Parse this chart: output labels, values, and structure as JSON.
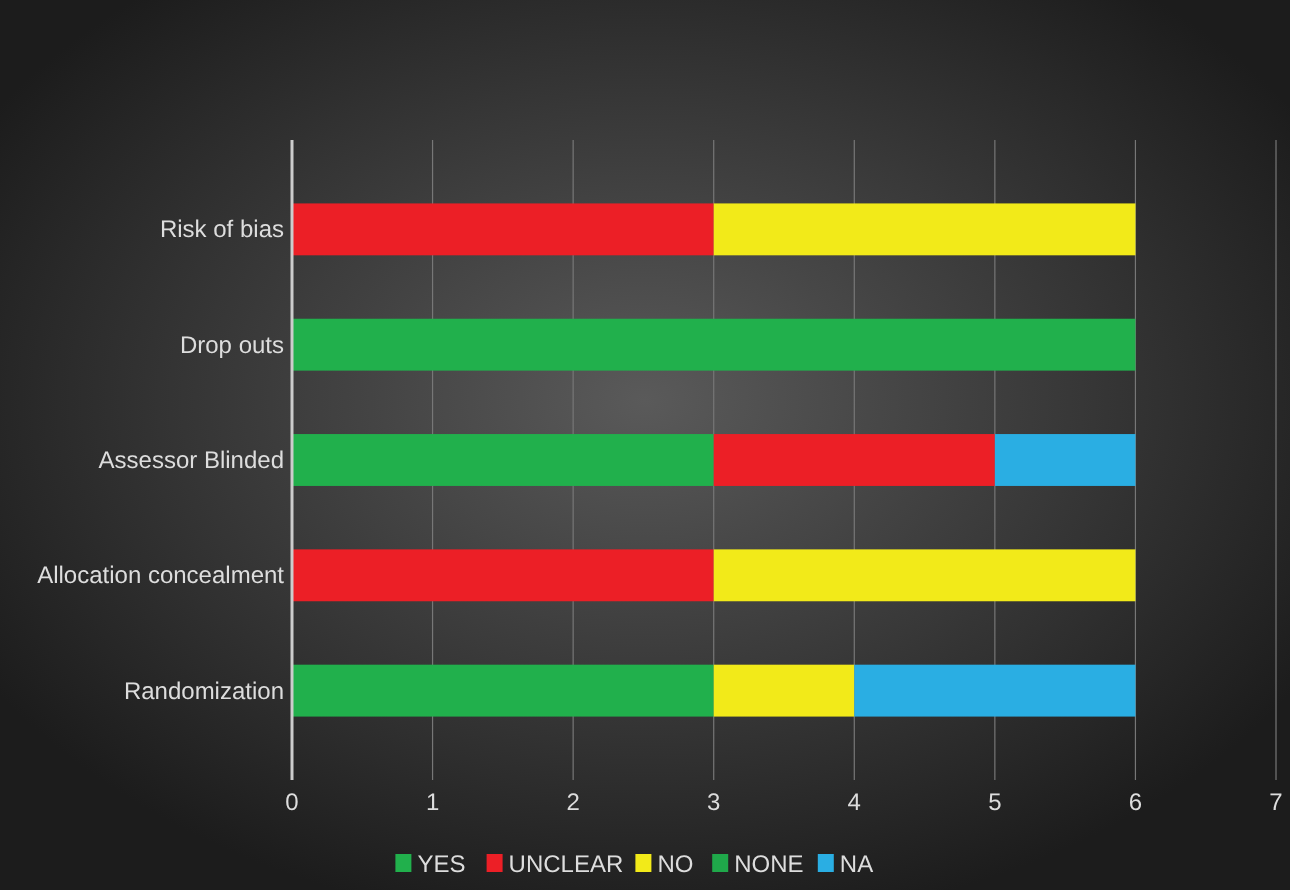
{
  "chart_data": {
    "type": "bar",
    "orientation": "horizontal",
    "stacked": true,
    "categories": [
      "Risk of bias",
      "Drop outs",
      "Assessor Blinded",
      "Allocation concealment",
      "Randomization"
    ],
    "series": [
      {
        "name": "YES",
        "color": "#21b04c",
        "values": [
          0,
          6,
          3,
          0,
          3
        ]
      },
      {
        "name": "UNCLEAR",
        "color": "#ec1f26",
        "values": [
          3,
          0,
          2,
          3,
          0
        ]
      },
      {
        "name": "NO",
        "color": "#f2ea19",
        "values": [
          3,
          0,
          0,
          3,
          1
        ]
      },
      {
        "name": "NONE",
        "color": "#1fa84a",
        "values": [
          0,
          0,
          0,
          0,
          0
        ]
      },
      {
        "name": "NA",
        "color": "#2aaee3",
        "values": [
          0,
          0,
          1,
          0,
          2
        ]
      }
    ],
    "xlim": [
      0,
      7
    ],
    "xticks": [
      0,
      1,
      2,
      3,
      4,
      5,
      6,
      7
    ],
    "grid": "x",
    "legend": "bottom"
  }
}
